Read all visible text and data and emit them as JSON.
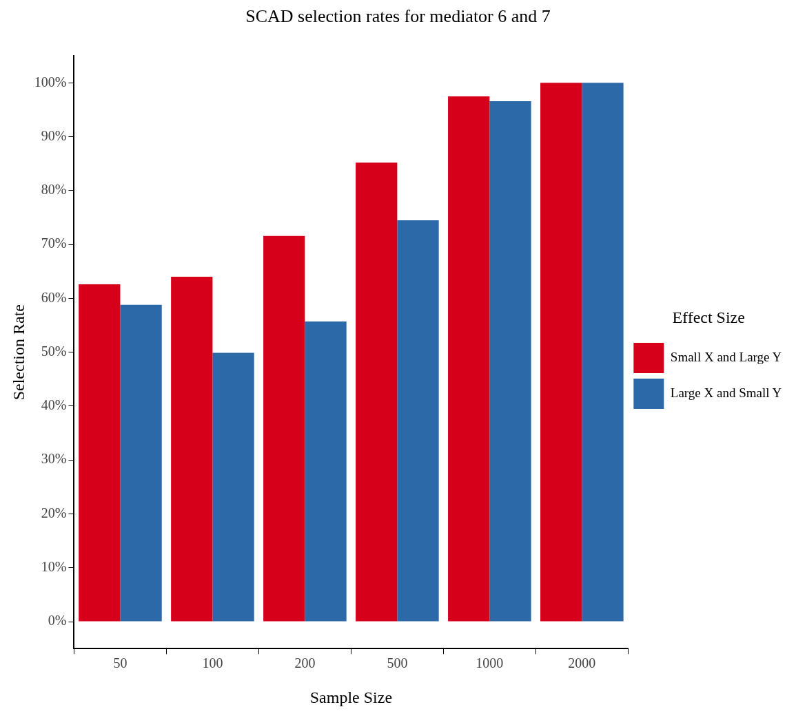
{
  "chart_data": {
    "type": "bar",
    "title": "SCAD selection rates for mediator 6 and 7",
    "xlabel": "Sample Size",
    "ylabel": "Selection Rate",
    "legend_title": "Effect Size",
    "categories": [
      "50",
      "100",
      "200",
      "500",
      "1000",
      "2000"
    ],
    "series": [
      {
        "name": "Small X and Large Y",
        "color": "#d7001a",
        "values": [
          62.6,
          64.0,
          71.6,
          85.2,
          97.5,
          100
        ]
      },
      {
        "name": "Large X and Small Y",
        "color": "#2c69a8",
        "values": [
          58.8,
          49.9,
          55.7,
          74.5,
          96.6,
          100
        ]
      }
    ],
    "ylim": [
      -5,
      105
    ],
    "yticks": [
      {
        "value": 0,
        "label": "0%"
      },
      {
        "value": 10,
        "label": "10%"
      },
      {
        "value": 20,
        "label": "20%"
      },
      {
        "value": 30,
        "label": "30%"
      },
      {
        "value": 40,
        "label": "40%"
      },
      {
        "value": 50,
        "label": "50%"
      },
      {
        "value": 60,
        "label": "60%"
      },
      {
        "value": 70,
        "label": "70%"
      },
      {
        "value": 80,
        "label": "80%"
      },
      {
        "value": 90,
        "label": "90%"
      },
      {
        "value": 100,
        "label": "100%"
      }
    ],
    "grid": false,
    "legend": "right"
  }
}
